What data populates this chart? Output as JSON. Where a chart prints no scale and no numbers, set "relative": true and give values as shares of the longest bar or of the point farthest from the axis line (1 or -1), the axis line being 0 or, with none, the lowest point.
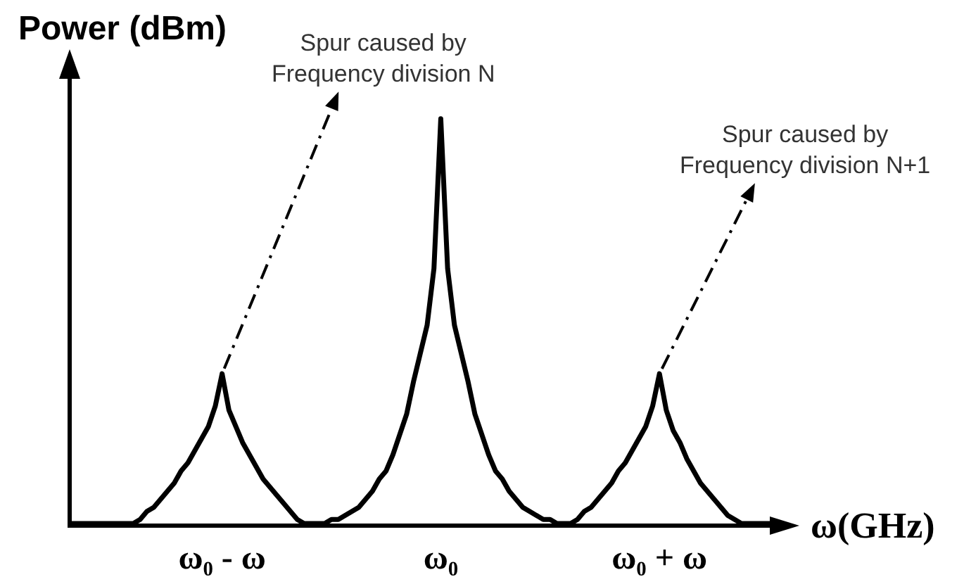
{
  "chart_data": {
    "type": "line",
    "relative": true,
    "ylabel": "Power (dBm)",
    "xlabel": "ω(GHz)",
    "line_style": "solid",
    "color": "#000000",
    "categories": [
      null,
      null,
      null,
      null,
      null,
      null,
      null,
      null,
      null,
      null,
      null,
      null,
      null,
      null,
      null,
      null,
      null,
      null,
      null,
      null,
      null,
      null,
      "ω₀ - ω",
      null,
      null,
      null,
      null,
      null,
      null,
      null,
      null,
      null,
      null,
      null,
      null,
      null,
      null,
      null,
      null,
      null,
      null,
      null,
      null,
      null,
      null,
      null,
      null,
      null,
      null,
      null,
      null,
      null,
      null,
      null,
      "ω₀",
      null,
      null,
      null,
      null,
      null,
      null,
      null,
      null,
      null,
      null,
      null,
      null,
      null,
      null,
      null,
      null,
      null,
      null,
      null,
      null,
      null,
      null,
      null,
      null,
      null,
      null,
      null,
      null,
      null,
      null,
      null,
      "ω₀ + ω",
      null,
      null,
      null,
      null,
      null,
      null,
      null,
      null,
      null,
      null,
      null,
      null,
      null,
      null,
      null,
      null,
      null,
      null
    ],
    "values": [
      0,
      0,
      0,
      0,
      0,
      0,
      0,
      0,
      0,
      0,
      0.01,
      0.03,
      0.04,
      0.06,
      0.08,
      0.1,
      0.13,
      0.15,
      0.18,
      0.21,
      0.24,
      0.29,
      0.37,
      0.28,
      0.24,
      0.2,
      0.17,
      0.14,
      0.11,
      0.09,
      0.07,
      0.05,
      0.03,
      0.01,
      0,
      0,
      0,
      0,
      0.01,
      0.01,
      0.02,
      0.03,
      0.04,
      0.06,
      0.08,
      0.11,
      0.13,
      0.17,
      0.22,
      0.27,
      0.35,
      0.42,
      0.49,
      0.63,
      1,
      0.63,
      0.49,
      0.42,
      0.35,
      0.27,
      0.22,
      0.17,
      0.13,
      0.11,
      0.08,
      0.06,
      0.04,
      0.03,
      0.02,
      0.01,
      0.01,
      0,
      0,
      0,
      0.01,
      0.03,
      0.04,
      0.06,
      0.08,
      0.1,
      0.13,
      0.15,
      0.18,
      0.21,
      0.24,
      0.29,
      0.37,
      0.28,
      0.23,
      0.2,
      0.16,
      0.13,
      0.1,
      0.08,
      0.06,
      0.04,
      0.02,
      0.01,
      0,
      0,
      0,
      0,
      0,
      0,
      0
    ],
    "annotations": [
      {
        "text": "Spur caused by\nFrequency division N",
        "x": "ω₀ - ω",
        "y": 0.37
      },
      {
        "text": "Spur caused by\nFrequency division N+1",
        "x": "ω₀ + ω",
        "y": 0.37
      }
    ]
  }
}
